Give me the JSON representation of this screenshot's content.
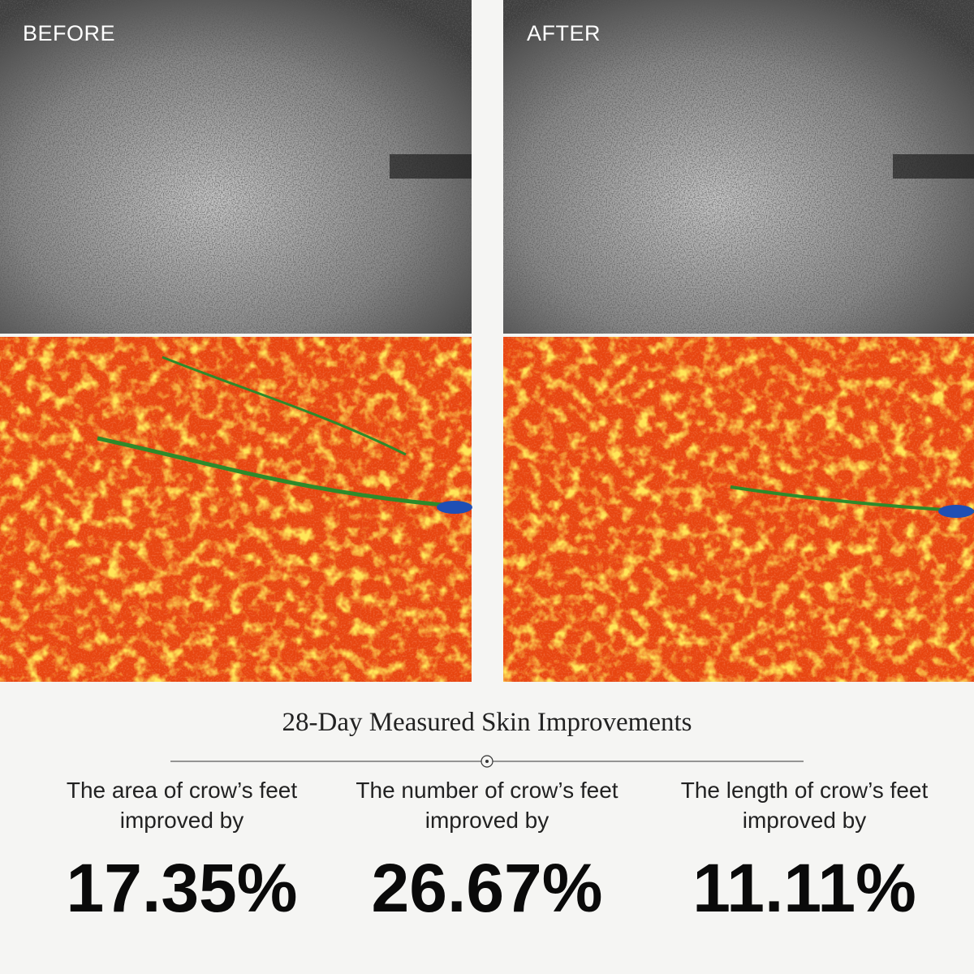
{
  "panels": [
    {
      "label": "BEFORE"
    },
    {
      "label": "AFTER"
    }
  ],
  "title": "28-Day Measured Skin Improvements",
  "stats": [
    {
      "line1": "The area of crow’s feet",
      "line2": "improved by",
      "value": "17.35%"
    },
    {
      "line1": "The number of crow’s feet",
      "line2": "improved by",
      "value": "26.67%"
    },
    {
      "line1": "The length of crow’s feet",
      "line2": "improved by",
      "value": "11.11%"
    }
  ]
}
